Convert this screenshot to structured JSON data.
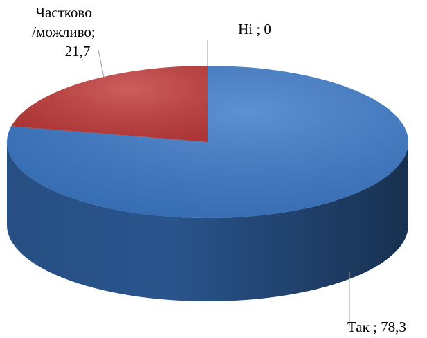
{
  "chart_data": {
    "type": "pie3d",
    "values": [
      78.3,
      21.7,
      0
    ],
    "value_labels": [
      [
        "Так ; 78,3"
      ],
      [
        "Частково",
        "/можливо;",
        "21,7"
      ],
      [
        "Ні ; 0"
      ]
    ],
    "colors": [
      "#3b79c9",
      "#c23b3a",
      "#8aa83f"
    ]
  }
}
